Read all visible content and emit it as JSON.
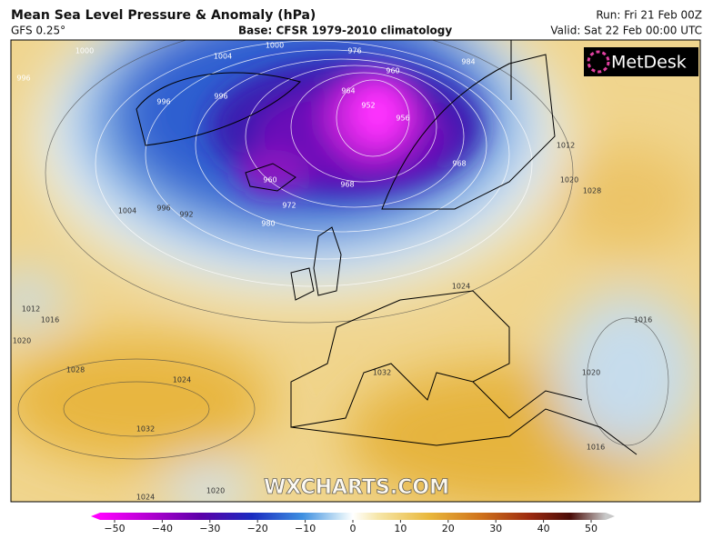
{
  "header": {
    "title": "Mean Sea Level Pressure & Anomaly (hPa)",
    "model": "GFS 0.25°",
    "base": "Base: CFSR 1979-2010 climatology",
    "run": "Run: Fri 21 Feb 00Z",
    "valid": "Valid: Sat 22 Feb 00:00 UTC"
  },
  "logo": "MetDesk",
  "watermark": "WXCHARTS.COM",
  "map": {
    "contour_labels": [
      996,
      1000,
      1004,
      1000,
      976,
      960,
      964,
      952,
      956,
      984,
      996,
      996,
      960,
      968,
      972,
      980,
      1004,
      996,
      992,
      968,
      1012,
      1020,
      1024,
      1028,
      1012,
      1016,
      1020,
      1028,
      1032,
      1024,
      1032,
      1016,
      1020,
      1016,
      1024,
      1020
    ]
  },
  "colorbar": {
    "range": [
      -50,
      50
    ],
    "ticks": [
      {
        "value": -50,
        "label": "−50"
      },
      {
        "value": -40,
        "label": "−40"
      },
      {
        "value": -30,
        "label": "−30"
      },
      {
        "value": -20,
        "label": "−20"
      },
      {
        "value": -10,
        "label": "−10"
      },
      0,
      10,
      20,
      30,
      40,
      50
    ]
  }
}
